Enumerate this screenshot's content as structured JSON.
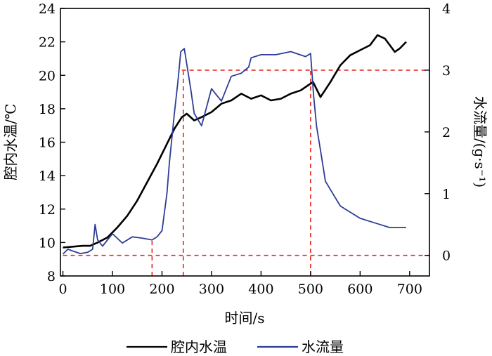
{
  "chart_data": {
    "type": "line",
    "title": "",
    "xlabel": "时间/s",
    "ylabel": "腔内水温/℃",
    "y2label": "水流量/(g·s⁻¹)",
    "xlim": [
      -5,
      740
    ],
    "ylim": [
      8,
      24
    ],
    "y2lim": [
      -0.33333,
      4
    ],
    "xticks": [
      0,
      100,
      200,
      300,
      400,
      500,
      600,
      700
    ],
    "yticks": [
      8,
      10,
      12,
      14,
      16,
      18,
      20,
      22,
      24
    ],
    "y2ticks": [
      0,
      1,
      2,
      3,
      4
    ],
    "grid": false,
    "legend_position": "bottom",
    "colors": {
      "temperature": "#000000",
      "flow": "#2e3c96",
      "reference": "#e8251e"
    },
    "series": [
      {
        "name": "腔内水温",
        "axis": "left",
        "x": [
          0,
          20,
          40,
          55,
          70,
          90,
          110,
          130,
          150,
          170,
          190,
          210,
          225,
          240,
          250,
          265,
          280,
          300,
          320,
          340,
          360,
          380,
          400,
          420,
          440,
          460,
          480,
          495,
          505,
          520,
          540,
          560,
          580,
          600,
          620,
          635,
          650,
          670,
          680,
          693
        ],
        "y": [
          9.7,
          9.75,
          9.8,
          9.8,
          10.0,
          10.3,
          10.9,
          11.6,
          12.5,
          13.6,
          14.7,
          15.9,
          16.8,
          17.5,
          17.7,
          17.3,
          17.5,
          17.8,
          18.3,
          18.5,
          18.9,
          18.6,
          18.8,
          18.5,
          18.6,
          18.9,
          19.1,
          19.4,
          19.6,
          18.7,
          19.6,
          20.6,
          21.2,
          21.5,
          21.8,
          22.4,
          22.2,
          21.4,
          21.6,
          22.0
        ]
      },
      {
        "name": "水流量",
        "axis": "right",
        "x": [
          0,
          10,
          20,
          35,
          50,
          60,
          65,
          70,
          80,
          100,
          120,
          140,
          160,
          180,
          190,
          200,
          210,
          215,
          225,
          232,
          238,
          245,
          250,
          258,
          265,
          280,
          300,
          320,
          340,
          360,
          375,
          380,
          400,
          430,
          460,
          490,
          500,
          506,
          512,
          520,
          530,
          545,
          560,
          580,
          600,
          620,
          640,
          660,
          680,
          693
        ],
        "y": [
          0.02,
          0.1,
          0.07,
          0.03,
          0.05,
          0.1,
          0.5,
          0.25,
          0.15,
          0.35,
          0.2,
          0.3,
          0.28,
          0.25,
          0.3,
          0.4,
          1.0,
          1.5,
          2.3,
          2.8,
          3.3,
          3.35,
          3.1,
          2.7,
          2.3,
          2.1,
          2.7,
          2.5,
          2.9,
          2.95,
          3.05,
          3.2,
          3.25,
          3.25,
          3.3,
          3.22,
          3.27,
          2.6,
          2.1,
          1.7,
          1.2,
          1.0,
          0.8,
          0.7,
          0.6,
          0.55,
          0.5,
          0.45,
          0.45,
          0.45
        ]
      }
    ],
    "reference_lines": [
      {
        "orientation": "horizontal",
        "axis": "right",
        "value": 3.0,
        "from_x": 240,
        "to_x": 740
      },
      {
        "orientation": "horizontal",
        "axis": "right",
        "value": 0,
        "from_x": 0,
        "to_x": 740
      },
      {
        "orientation": "vertical",
        "value": 180,
        "from_y2": -0.33333,
        "to_y2": 0.3
      },
      {
        "orientation": "vertical",
        "value": 243,
        "from_y2": -0.33333,
        "to_y2": 3.0
      },
      {
        "orientation": "vertical",
        "value": 500,
        "from_y2": -0.33333,
        "to_y2": 3.0
      }
    ]
  }
}
